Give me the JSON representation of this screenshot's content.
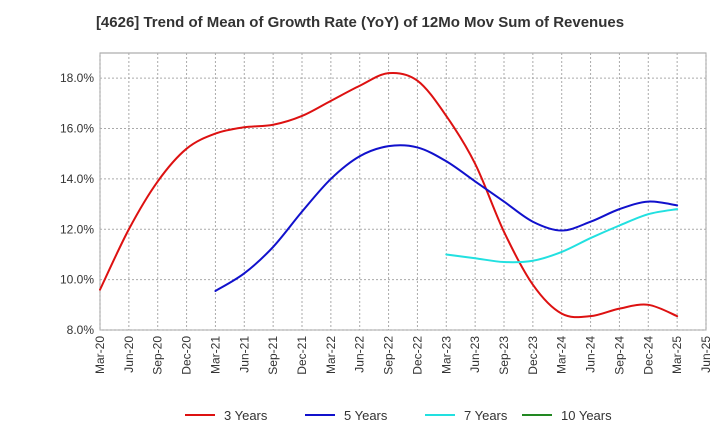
{
  "chart_data": {
    "type": "line",
    "title": "[4626]  Trend of Mean of Growth Rate (YoY) of 12Mo Mov Sum of Revenues",
    "xlabel": "",
    "ylabel": "",
    "ylim": [
      8.0,
      19.0
    ],
    "yticks": [
      8.0,
      10.0,
      12.0,
      14.0,
      16.0,
      18.0
    ],
    "ytick_labels": [
      "8.0%",
      "10.0%",
      "12.0%",
      "14.0%",
      "16.0%",
      "18.0%"
    ],
    "categories": [
      "Mar-20",
      "Jun-20",
      "Sep-20",
      "Dec-20",
      "Mar-21",
      "Jun-21",
      "Sep-21",
      "Dec-21",
      "Mar-22",
      "Jun-22",
      "Sep-22",
      "Dec-22",
      "Mar-23",
      "Jun-23",
      "Sep-23",
      "Dec-23",
      "Mar-24",
      "Jun-24",
      "Sep-24",
      "Dec-24",
      "Mar-25",
      "Jun-25"
    ],
    "grid": true,
    "legend_position": "bottom",
    "series": [
      {
        "name": "3 Years",
        "color": "#dd1111",
        "values": [
          9.6,
          12.0,
          13.9,
          15.2,
          15.8,
          16.05,
          16.15,
          16.5,
          17.1,
          17.7,
          18.2,
          17.9,
          16.5,
          14.6,
          11.9,
          9.8,
          8.65,
          8.55,
          8.85,
          9.0,
          8.55,
          null
        ]
      },
      {
        "name": "5 Years",
        "color": "#1111cc",
        "values": [
          null,
          null,
          null,
          null,
          9.55,
          10.25,
          11.3,
          12.7,
          14.0,
          14.9,
          15.3,
          15.25,
          14.7,
          13.9,
          13.1,
          12.3,
          11.95,
          12.3,
          12.8,
          13.1,
          12.95,
          null
        ]
      },
      {
        "name": "7 Years",
        "color": "#22e0e0",
        "values": [
          null,
          null,
          null,
          null,
          null,
          null,
          null,
          null,
          null,
          null,
          null,
          null,
          11.0,
          10.85,
          10.7,
          10.75,
          11.1,
          11.65,
          12.15,
          12.6,
          12.8,
          null
        ]
      },
      {
        "name": "10 Years",
        "color": "#228822",
        "values": [
          null,
          null,
          null,
          null,
          null,
          null,
          null,
          null,
          null,
          null,
          null,
          null,
          null,
          null,
          null,
          null,
          null,
          null,
          null,
          null,
          null,
          null
        ]
      }
    ]
  }
}
